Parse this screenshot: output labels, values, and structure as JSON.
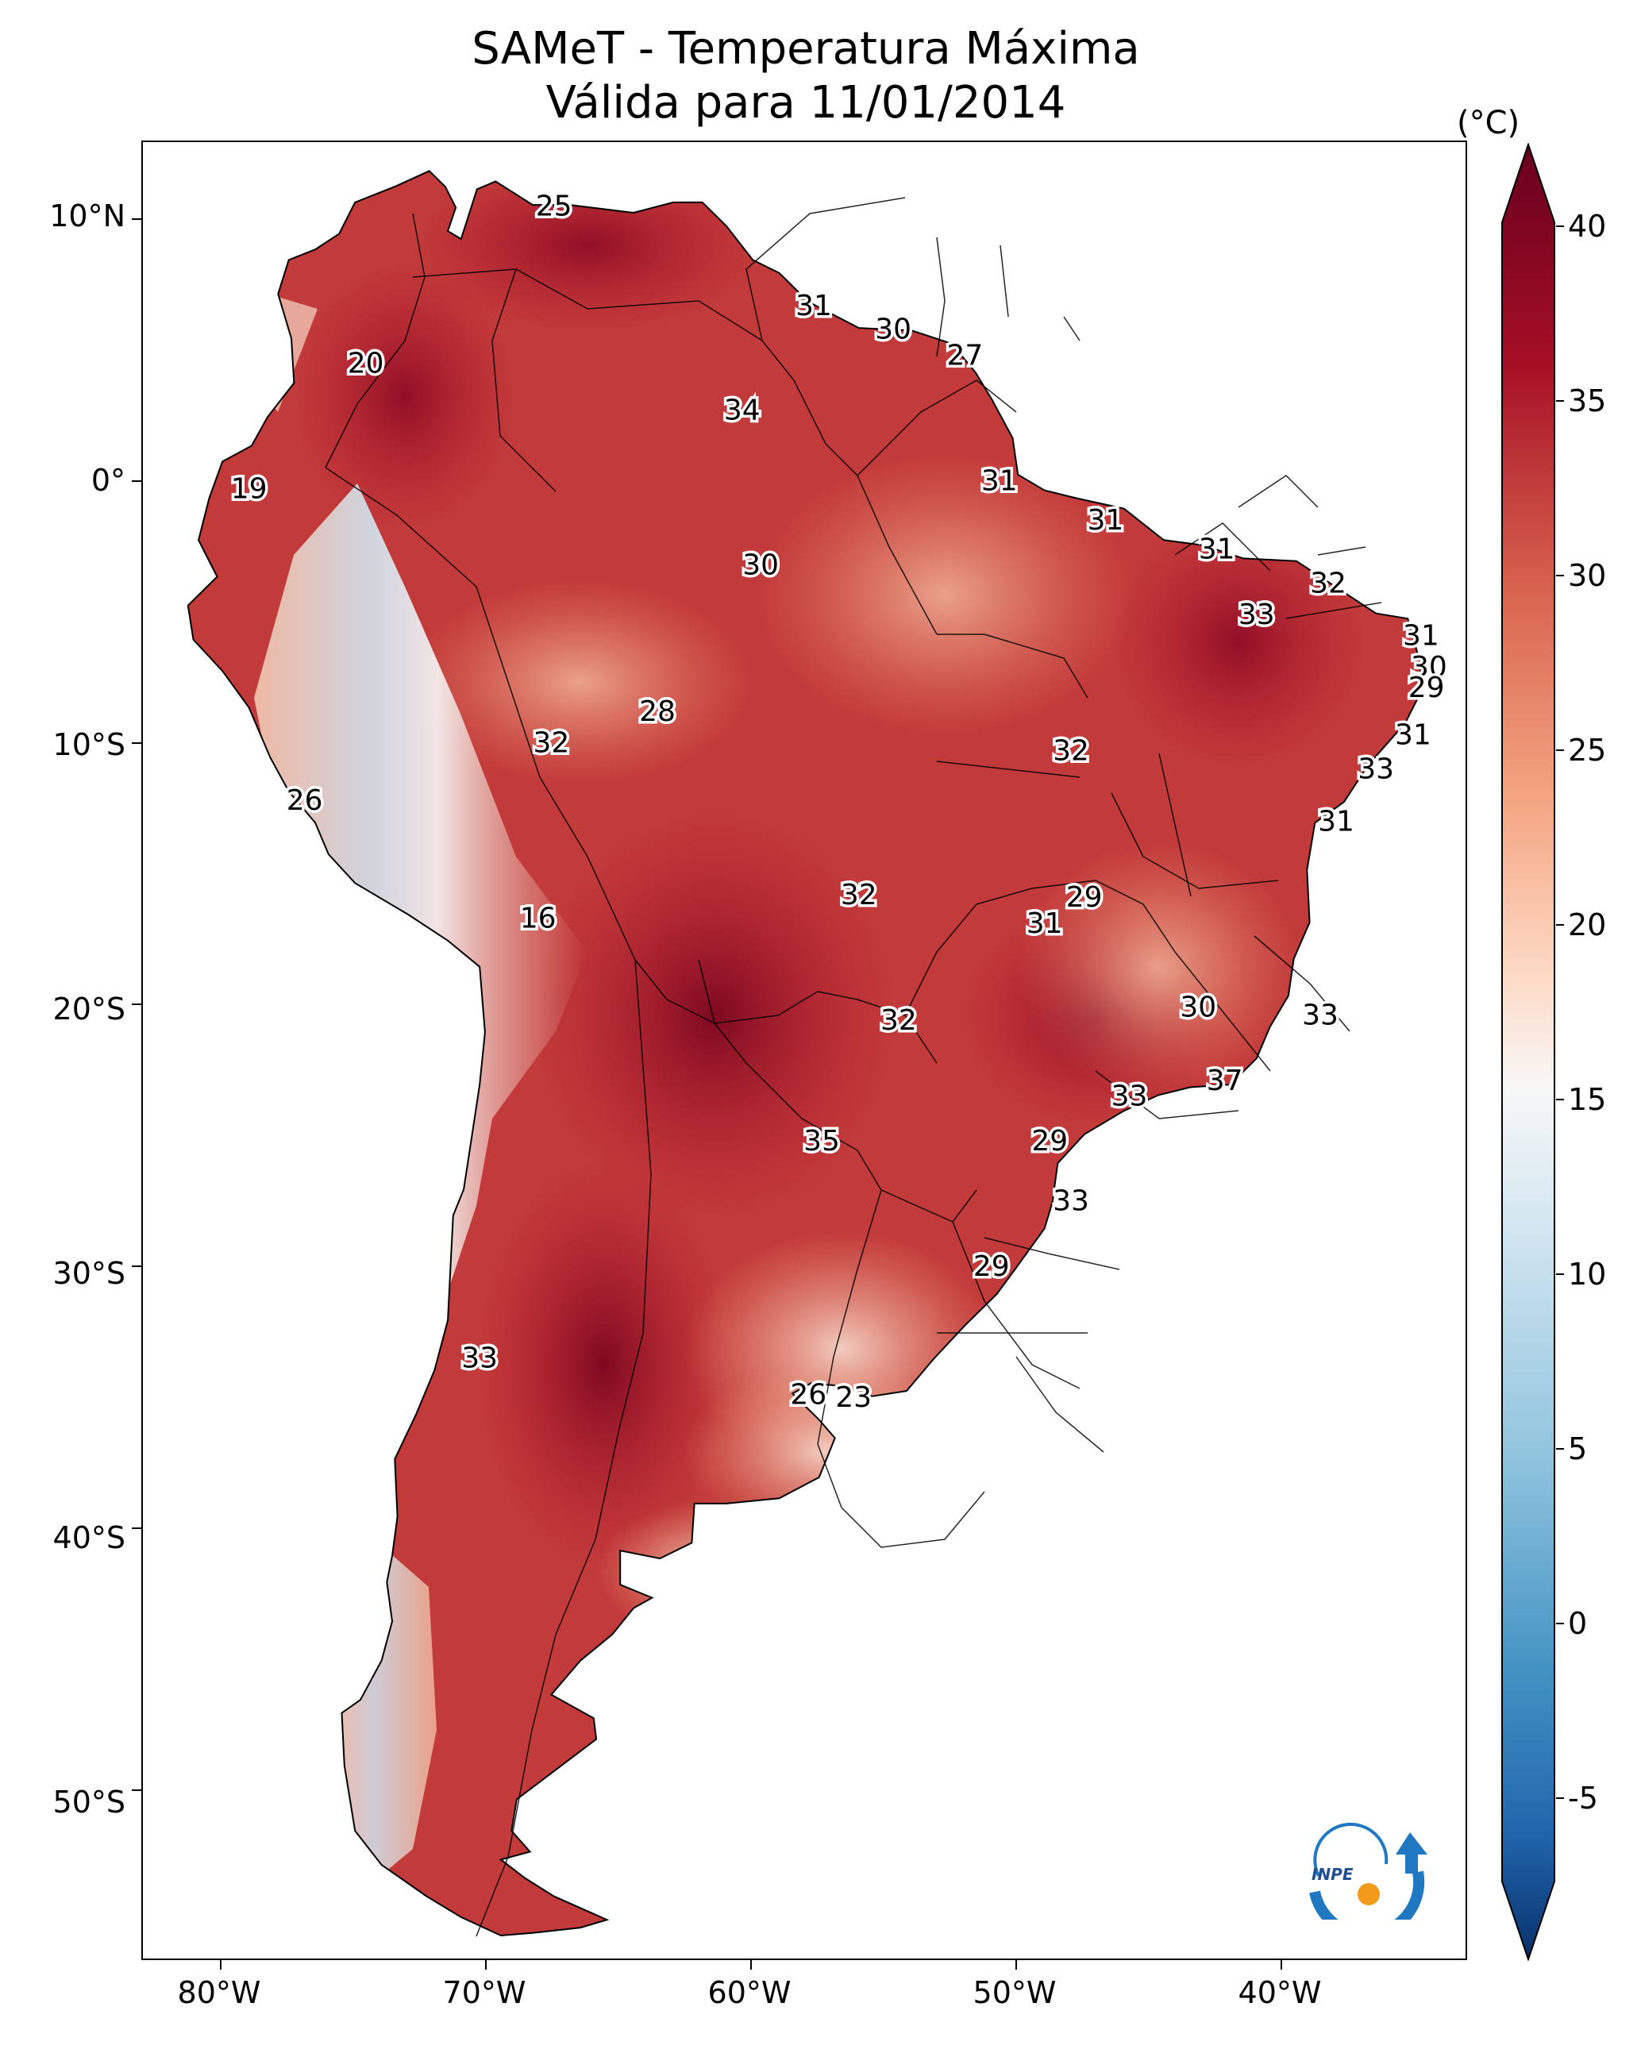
{
  "title": "SAMeT - Temperatura Máxima",
  "subtitle": "Válida para 11/01/2014",
  "colorbar": {
    "unit": "(°C)",
    "ticks": [
      "40",
      "35",
      "30",
      "25",
      "20",
      "15",
      "10",
      "5",
      "0",
      "-5"
    ],
    "range": [
      -5,
      40
    ],
    "extend": "both",
    "colormap": "RdBu_r",
    "colors": {
      "low": "#08306b",
      "mid_low": "#4a93c6",
      "neutral": "#f7f7f7",
      "mid_high": "#f4a582",
      "high": "#d6604d",
      "max": "#67001f"
    }
  },
  "axes": {
    "lat_labels": [
      "10°N",
      "0°",
      "10°S",
      "20°S",
      "30°S",
      "40°S",
      "50°S"
    ],
    "lon_labels": [
      "80°W",
      "70°W",
      "60°W",
      "50°W",
      "40°W"
    ],
    "lon_range": [
      -83,
      -33
    ],
    "lat_range": [
      -56.5,
      13
    ]
  },
  "chart_data": {
    "type": "heatmap",
    "title": "SAMeT - Temperatura Máxima",
    "subtitle": "Válida para 11/01/2014",
    "colorbar_label": "(°C)",
    "value_range": [
      -5,
      40
    ],
    "annotations": [
      {
        "text": "25",
        "lon": -67.5,
        "lat": 10.5
      },
      {
        "text": "31",
        "lon": -57.7,
        "lat": 6.7
      },
      {
        "text": "30",
        "lon": -54.7,
        "lat": 5.8
      },
      {
        "text": "27",
        "lon": -52.0,
        "lat": 4.8
      },
      {
        "text": "20",
        "lon": -74.6,
        "lat": 4.5
      },
      {
        "text": "34",
        "lon": -60.4,
        "lat": 2.7
      },
      {
        "text": "19",
        "lon": -79.0,
        "lat": -0.3
      },
      {
        "text": "31",
        "lon": -50.7,
        "lat": 0.0
      },
      {
        "text": "31",
        "lon": -46.7,
        "lat": -1.5
      },
      {
        "text": "31",
        "lon": -42.5,
        "lat": -2.6
      },
      {
        "text": "30",
        "lon": -59.7,
        "lat": -3.2
      },
      {
        "text": "32",
        "lon": -38.3,
        "lat": -3.9
      },
      {
        "text": "33",
        "lon": -41.0,
        "lat": -5.1
      },
      {
        "text": "31",
        "lon": -34.8,
        "lat": -5.9
      },
      {
        "text": "30",
        "lon": -34.5,
        "lat": -7.1
      },
      {
        "text": "29",
        "lon": -34.6,
        "lat": -7.9
      },
      {
        "text": "28",
        "lon": -63.6,
        "lat": -8.8
      },
      {
        "text": "32",
        "lon": -67.6,
        "lat": -10.0
      },
      {
        "text": "32",
        "lon": -48.0,
        "lat": -10.3
      },
      {
        "text": "31",
        "lon": -35.1,
        "lat": -9.7
      },
      {
        "text": "33",
        "lon": -36.5,
        "lat": -11.0
      },
      {
        "text": "26",
        "lon": -76.9,
        "lat": -12.2
      },
      {
        "text": "31",
        "lon": -38.0,
        "lat": -13.0
      },
      {
        "text": "32",
        "lon": -56.0,
        "lat": -15.8
      },
      {
        "text": "29",
        "lon": -47.5,
        "lat": -15.9
      },
      {
        "text": "31",
        "lon": -49.0,
        "lat": -16.9
      },
      {
        "text": "16",
        "lon": -68.1,
        "lat": -16.7
      },
      {
        "text": "30",
        "lon": -43.2,
        "lat": -20.1
      },
      {
        "text": "33",
        "lon": -38.6,
        "lat": -20.4
      },
      {
        "text": "32",
        "lon": -54.5,
        "lat": -20.6
      },
      {
        "text": "37",
        "lon": -42.2,
        "lat": -22.9
      },
      {
        "text": "33",
        "lon": -45.8,
        "lat": -23.5
      },
      {
        "text": "35",
        "lon": -57.4,
        "lat": -25.2
      },
      {
        "text": "29",
        "lon": -48.8,
        "lat": -25.2
      },
      {
        "text": "33",
        "lon": -48.0,
        "lat": -27.5
      },
      {
        "text": "29",
        "lon": -51.0,
        "lat": -30.0
      },
      {
        "text": "33",
        "lon": -70.3,
        "lat": -33.5
      },
      {
        "text": "26",
        "lon": -57.9,
        "lat": -34.9
      },
      {
        "text": "23",
        "lon": -56.2,
        "lat": -35.0
      }
    ]
  },
  "logo": {
    "text": "INPE"
  }
}
